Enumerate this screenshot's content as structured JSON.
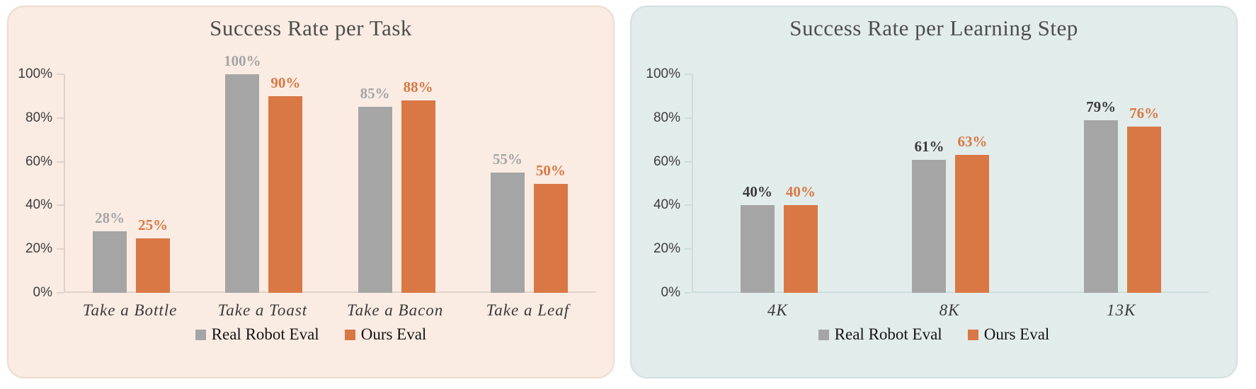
{
  "page": {
    "background": "#ffffff"
  },
  "chart_data": [
    {
      "type": "bar",
      "title": "Success Rate per Task",
      "panel_bg": "#faece3",
      "panel_border": "#f0ddd0",
      "axis_color": "#ded2ca",
      "categories": [
        "Take a Bottle",
        "Take a Toast",
        "Take a Bacon",
        "Take a Leaf"
      ],
      "series": [
        {
          "name": "Real Robot Eval",
          "color": "#a5a5a5",
          "label_color": "#a5a5a5",
          "values": [
            28,
            100,
            85,
            55
          ]
        },
        {
          "name": "Ours Eval",
          "color": "#d97845",
          "label_color": "#d97845",
          "values": [
            25,
            90,
            88,
            50
          ]
        }
      ],
      "y_ticks": [
        "100%",
        "80%",
        "60%",
        "40%",
        "20%",
        "0%"
      ],
      "ylim": [
        0,
        100
      ],
      "grid": false,
      "legend_position": "bottom",
      "legend": [
        "Real Robot Eval",
        "Ours Eval"
      ]
    },
    {
      "type": "bar",
      "title": "Success Rate per Learning Step",
      "panel_bg": "#e2ecea",
      "panel_border": "#d4e2e0",
      "axis_color": "#cddddb",
      "categories": [
        "4K",
        "8K",
        "13K"
      ],
      "series": [
        {
          "name": "Real Robot Eval",
          "color": "#a5a5a5",
          "label_color": "#3b3b3b",
          "values": [
            40,
            61,
            79
          ]
        },
        {
          "name": "Ours Eval",
          "color": "#d97845",
          "label_color": "#d97845",
          "values": [
            40,
            63,
            76
          ]
        }
      ],
      "y_ticks": [
        "100%",
        "80%",
        "60%",
        "40%",
        "20%",
        "0%"
      ],
      "ylim": [
        0,
        100
      ],
      "grid": false,
      "legend_position": "bottom",
      "legend": [
        "Real Robot Eval",
        "Ours Eval"
      ]
    }
  ]
}
